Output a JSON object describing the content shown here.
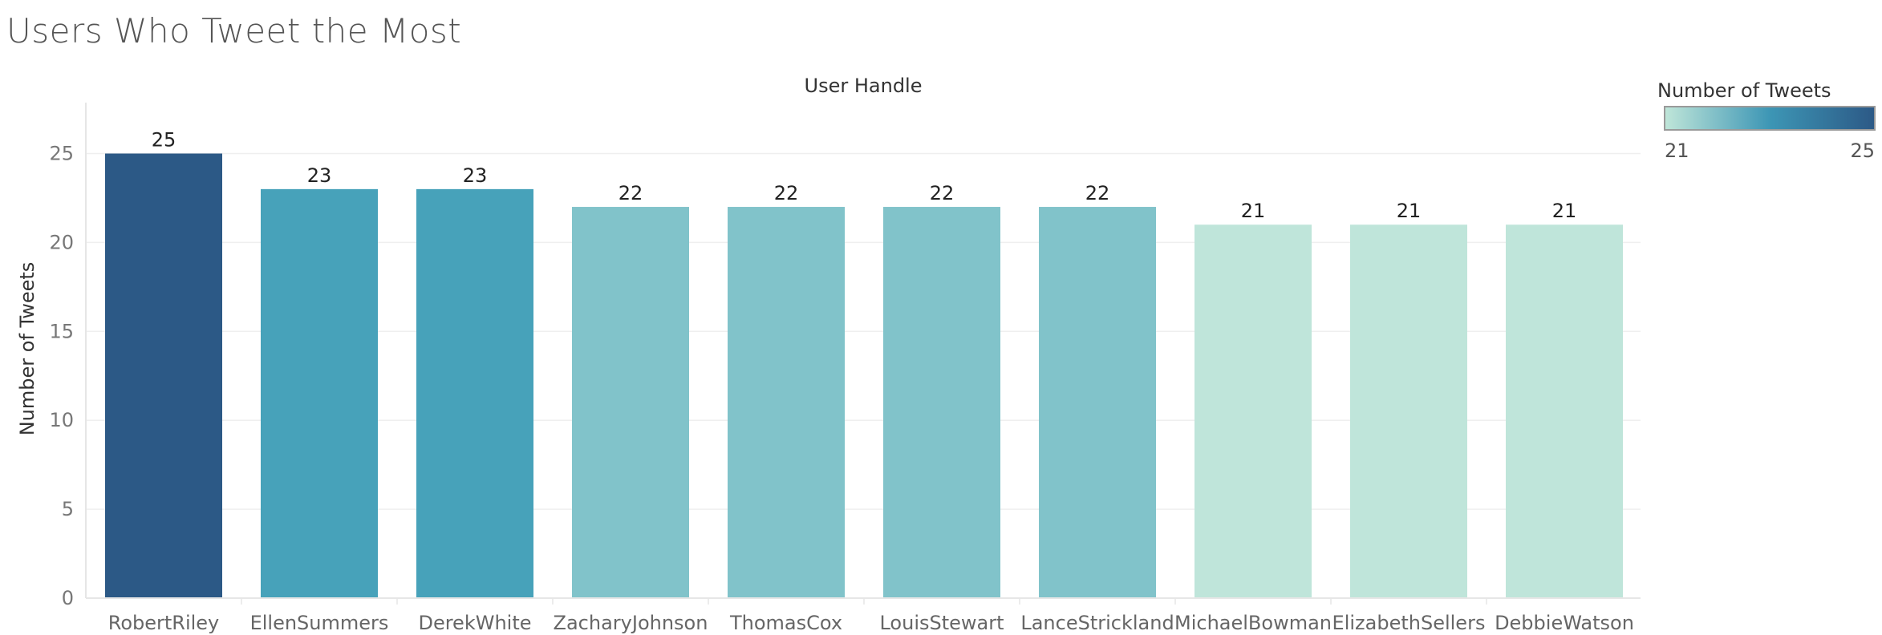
{
  "title": "Users Who Tweet the Most",
  "legend": {
    "title": "Number of Tweets",
    "min_label": "21",
    "max_label": "25",
    "color_low": "#c0e6d9",
    "color_high": "#2c5986"
  },
  "chart_data": {
    "type": "bar",
    "title": "Users Who Tweet the Most",
    "xlabel": "User Handle",
    "ylabel": "Number of Tweets",
    "categories": [
      "RobertRiley",
      "EllenSummers",
      "DerekWhite",
      "ZacharyJohnson",
      "ThomasCox",
      "LouisStewart",
      "LanceStrickland",
      "MichaelBowman",
      "ElizabethSellers",
      "DebbieWatson"
    ],
    "values": [
      25,
      23,
      23,
      22,
      22,
      22,
      22,
      21,
      21,
      21
    ],
    "colors": [
      "#2c5986",
      "#47a2ba",
      "#47a2ba",
      "#81c3ca",
      "#81c3ca",
      "#81c3ca",
      "#81c3ca",
      "#bfe5da",
      "#bfe5da",
      "#bfe5da"
    ],
    "ylim": [
      0,
      28
    ],
    "yticks": [
      0,
      5,
      10,
      15,
      20,
      25
    ],
    "grid": true,
    "legend_position": "top-right"
  }
}
